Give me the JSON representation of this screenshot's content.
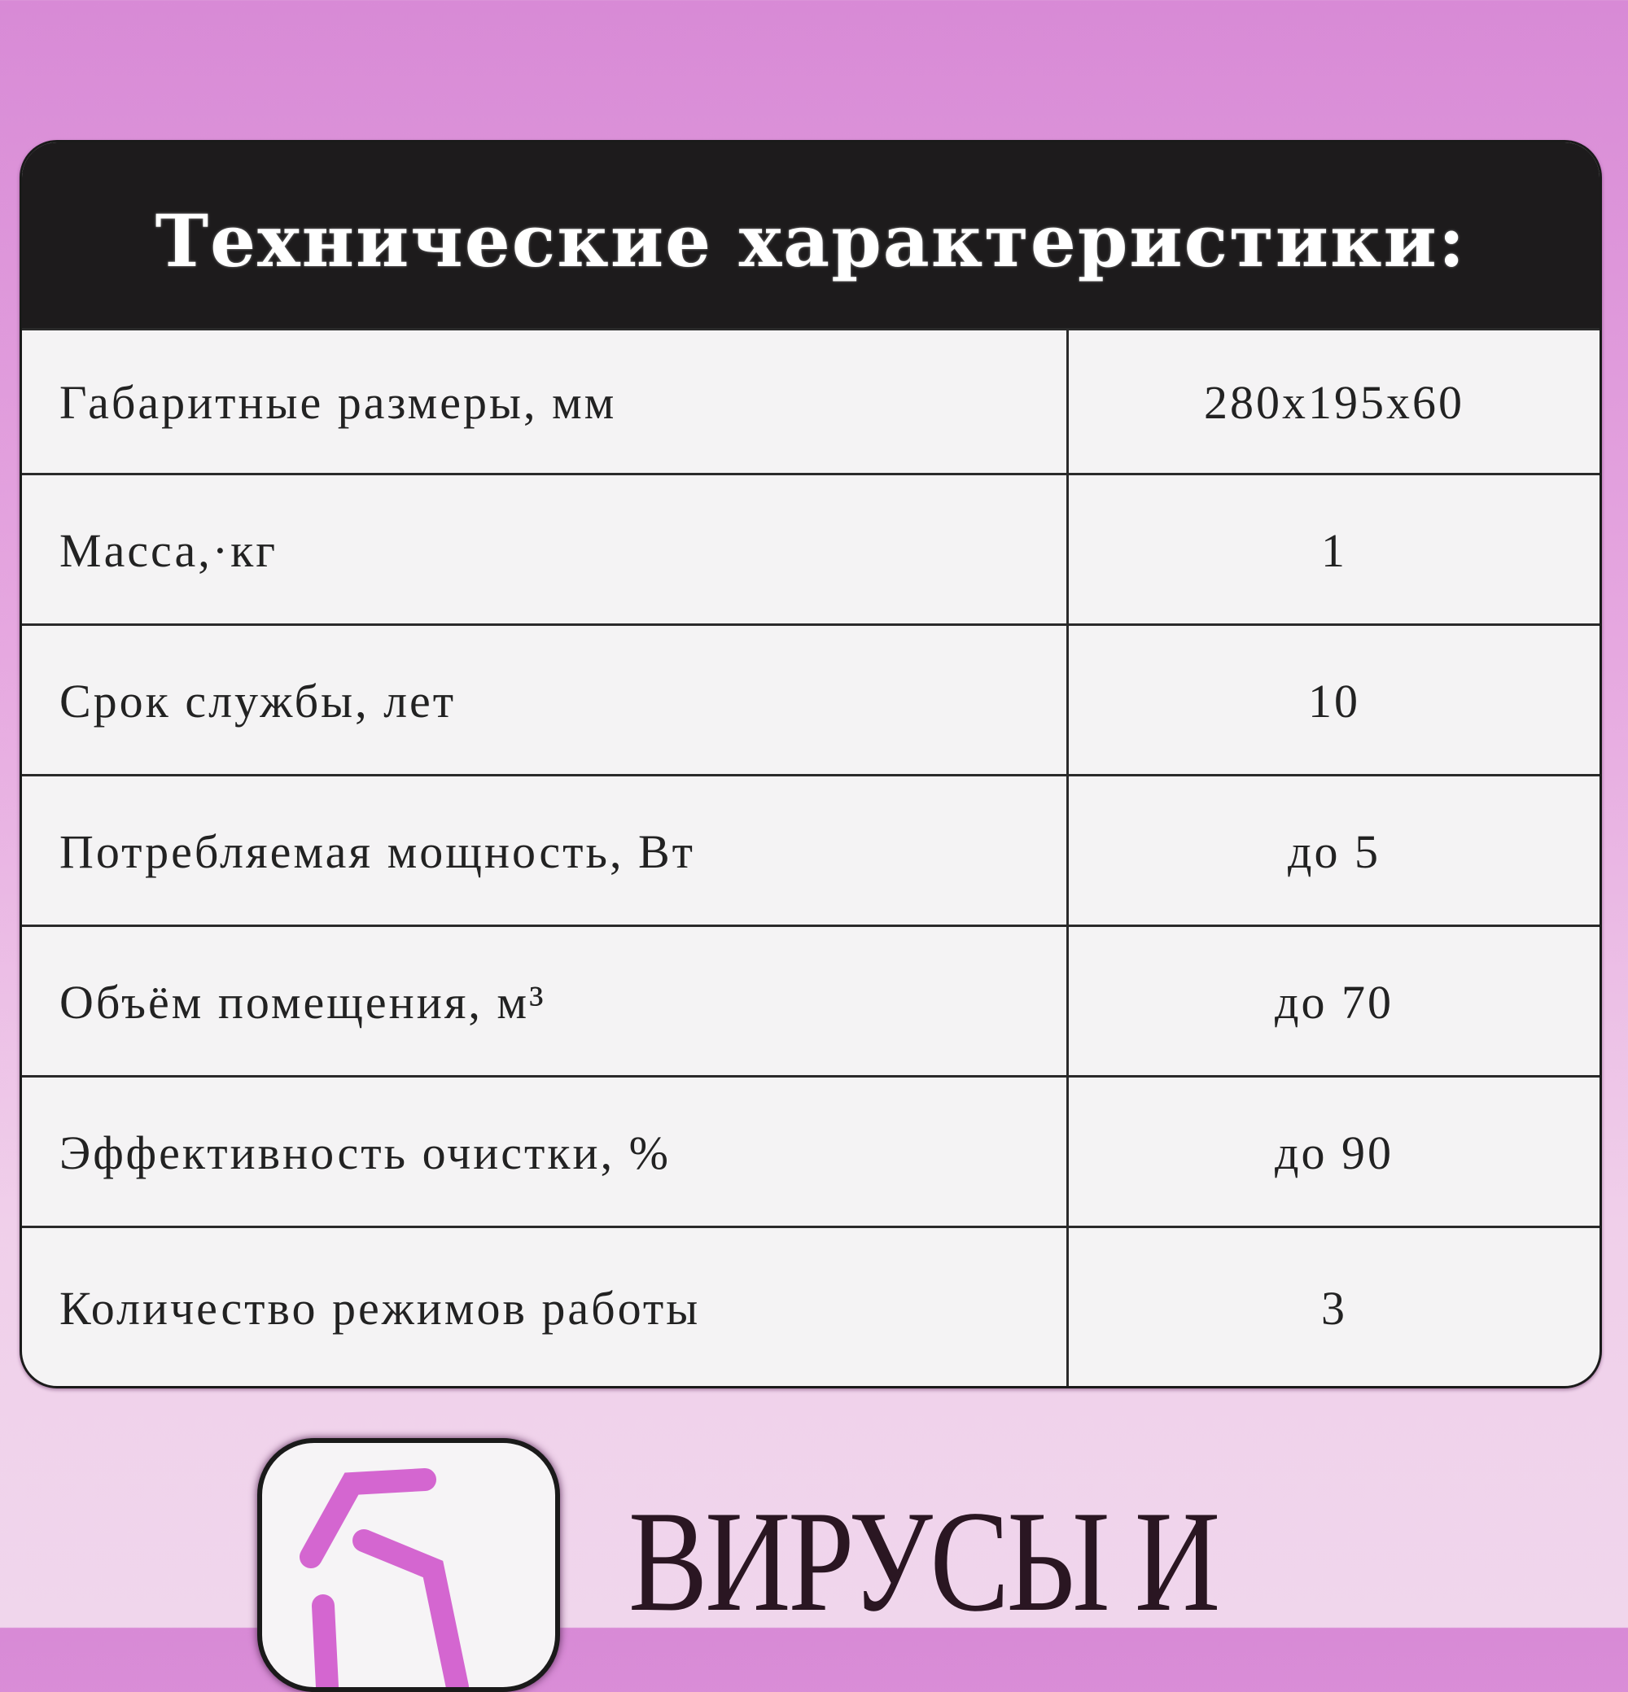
{
  "table": {
    "title": "Технические характеристики:",
    "rows": [
      {
        "label": "Габаритные размеры, мм",
        "value": "280х195х60"
      },
      {
        "label": "Масса,·кг",
        "value": "1"
      },
      {
        "label": "Срок службы, лет",
        "value": "10"
      },
      {
        "label": "Потребляемая  мощность, Вт",
        "value": "до 5"
      },
      {
        "label": "Объём помещения, м³",
        "value": "до 70"
      },
      {
        "label": "Эффективность очистки, %",
        "value": "до 90"
      },
      {
        "label": "Количество режимов работы",
        "value": "3"
      }
    ]
  },
  "feature": {
    "icon": "virus-icon",
    "text": "ВИРУСЫ И"
  },
  "colors": {
    "background": "#e6a8e0",
    "header": "#1d1b1c",
    "accent": "#d466d0"
  }
}
